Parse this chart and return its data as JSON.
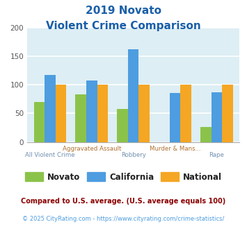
{
  "title_line1": "2019 Novato",
  "title_line2": "Violent Crime Comparison",
  "novato": [
    70,
    83,
    58,
    0,
    26
  ],
  "california": [
    117,
    107,
    162,
    86,
    87
  ],
  "national": [
    100,
    100,
    100,
    100,
    100
  ],
  "novato_color": "#8bc34a",
  "california_color": "#4d9de0",
  "national_color": "#f5a623",
  "bg_color": "#ddeef4",
  "title_color": "#1a5fa8",
  "ylabel_max": 200,
  "yticks": [
    0,
    50,
    100,
    150,
    200
  ],
  "top_labels": {
    "1": "Aggravated Assault",
    "3": "Murder & Mans..."
  },
  "bottom_labels": {
    "0": "All Violent Crime",
    "2": "Robbery",
    "4": "Rape"
  },
  "footnote1": "Compared to U.S. average. (U.S. average equals 100)",
  "footnote2": "© 2025 CityRating.com - https://www.cityrating.com/crime-statistics/",
  "footnote1_color": "#8b0000",
  "footnote2_color": "#4d9de0",
  "label_color_top": "#b07030",
  "label_color_bottom": "#7090b0"
}
